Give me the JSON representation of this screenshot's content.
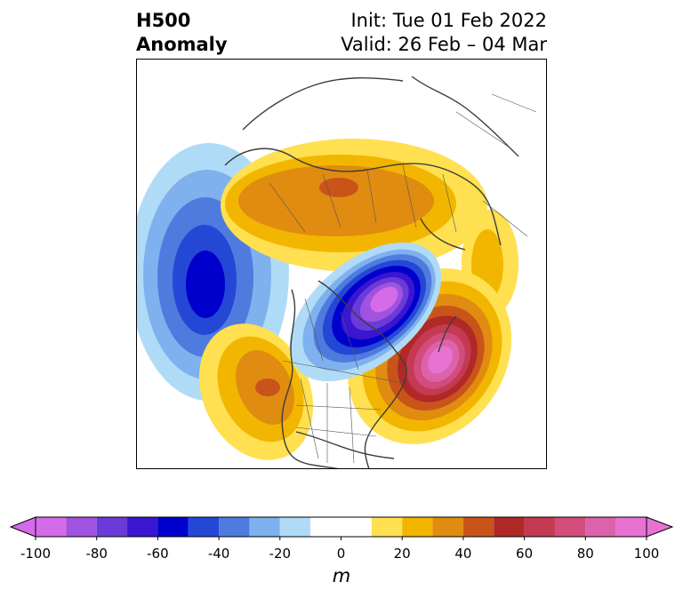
{
  "title": {
    "line1": "H500",
    "line2": "Anomaly"
  },
  "info": {
    "init": "Init: Tue 01 Feb 2022",
    "valid": "Valid: 26 Feb – 04 Mar"
  },
  "map": {
    "projection": "polar-stereographic",
    "region": "North America / North Pacific / North Atlantic",
    "features": [
      {
        "name": "north-pacific-negative-anomaly",
        "sign": "negative",
        "peak_m": -60
      },
      {
        "name": "canada-central-negative-anomaly",
        "sign": "negative",
        "peak_m": -100
      },
      {
        "name": "western-atlantic-positive-anomaly",
        "sign": "positive",
        "peak_m": 100
      },
      {
        "name": "western-us-positive-anomaly",
        "sign": "positive",
        "peak_m": 60
      },
      {
        "name": "arctic-positive-anomaly-band",
        "sign": "positive",
        "peak_m": 60
      }
    ]
  },
  "colorbar": {
    "ticks": [
      "-100",
      "-80",
      "-60",
      "-40",
      "-20",
      "0",
      "20",
      "40",
      "60",
      "80",
      "100"
    ],
    "unit": "m",
    "levels": [
      -100,
      -90,
      -80,
      -70,
      -60,
      -50,
      -40,
      -30,
      -20,
      -10,
      10,
      20,
      30,
      40,
      50,
      60,
      70,
      80,
      90,
      100
    ],
    "colors": [
      "#d46be8",
      "#a052e0",
      "#6a3bd8",
      "#3b16d0",
      "#0000cd",
      "#2547d6",
      "#4f7bdf",
      "#7fb1ee",
      "#b0dbf7",
      "#ffffff",
      "#ffe050",
      "#f2b600",
      "#e08c10",
      "#c9541a",
      "#b02828",
      "#c43a52",
      "#d24c7c",
      "#dc63ab",
      "#e872d2"
    ]
  }
}
